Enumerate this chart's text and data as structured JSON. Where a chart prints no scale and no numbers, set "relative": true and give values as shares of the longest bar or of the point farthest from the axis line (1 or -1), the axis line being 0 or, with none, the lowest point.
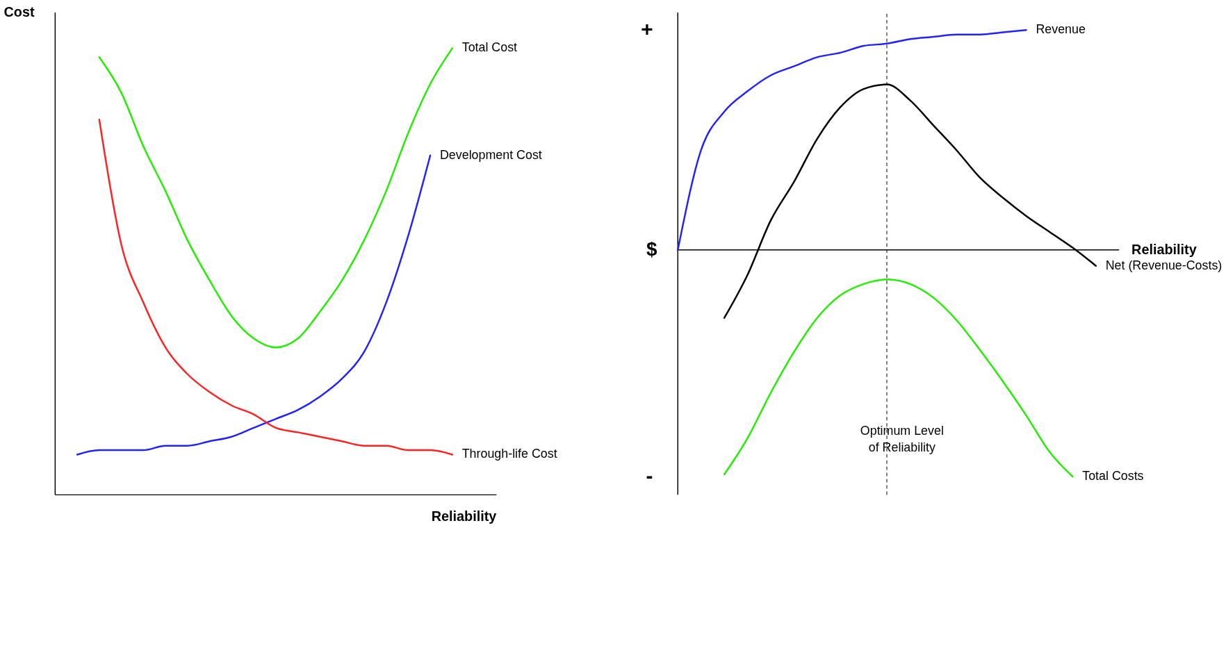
{
  "chart_data": [
    {
      "type": "line",
      "relative": true,
      "xlabel": "Reliability",
      "ylabel": "Cost",
      "marker": "none",
      "line_style": "solid",
      "categories": [
        null,
        null,
        null,
        null,
        null,
        null,
        null,
        null,
        null,
        null,
        null,
        null,
        null,
        null,
        null,
        null,
        null,
        null,
        null,
        null,
        null
      ],
      "series": [
        {
          "name": "Total Cost",
          "color": "#22ee00",
          "values": [
            null,
            null,
            0.98,
            0.9,
            0.78,
            0.68,
            0.57,
            0.48,
            0.4,
            0.35,
            0.33,
            0.35,
            0.41,
            0.48,
            0.57,
            0.68,
            0.81,
            0.92,
            1.0,
            null,
            null
          ]
        },
        {
          "name": "Development Cost",
          "color": "#2222ff",
          "values": [
            null,
            0.09,
            0.1,
            0.1,
            0.1,
            0.11,
            0.11,
            0.12,
            0.13,
            0.15,
            0.17,
            0.19,
            0.22,
            0.26,
            0.32,
            0.43,
            0.58,
            0.76,
            null,
            null,
            null
          ]
        },
        {
          "name": "Through-life Cost",
          "color": "#ff2222",
          "values": [
            null,
            null,
            0.84,
            0.56,
            0.43,
            0.33,
            0.27,
            0.23,
            0.2,
            0.18,
            0.15,
            0.14,
            0.13,
            0.12,
            0.11,
            0.11,
            0.1,
            0.1,
            0.09,
            null,
            null
          ]
        }
      ]
    },
    {
      "type": "line",
      "relative": true,
      "xlabel": "Reliability",
      "ylabel": "$",
      "marker": "none",
      "line_style": "solid",
      "annotations": [
        "+",
        "-",
        "Optimum Level\nof Reliability"
      ],
      "categories": [
        null,
        null,
        null,
        null,
        null,
        null,
        null,
        null,
        null,
        null,
        null,
        null,
        null,
        null,
        null,
        null,
        null,
        null,
        null,
        null
      ],
      "series": [
        {
          "name": "Revenue",
          "color": "#2222ff",
          "values": [
            0,
            0.44,
            0.61,
            0.7,
            0.77,
            0.81,
            0.85,
            0.87,
            0.9,
            0.91,
            0.93,
            0.94,
            0.95,
            0.95,
            0.96,
            0.97,
            null,
            null,
            null,
            null
          ]
        },
        {
          "name": "Net (Revenue-Costs)",
          "color": "#000000",
          "values": [
            null,
            null,
            -0.3,
            -0.11,
            0.13,
            0.3,
            0.49,
            0.63,
            0.71,
            0.73,
            0.66,
            0.55,
            0.44,
            0.32,
            0.23,
            0.15,
            0.08,
            0.01,
            -0.07,
            null
          ]
        },
        {
          "name": "Total Costs",
          "color": "#22ee00",
          "values": [
            null,
            null,
            -0.99,
            -0.83,
            -0.63,
            -0.45,
            -0.3,
            -0.2,
            -0.15,
            -0.13,
            -0.15,
            -0.21,
            -0.31,
            -0.44,
            -0.58,
            -0.73,
            -0.89,
            -1.0,
            null,
            null
          ]
        }
      ]
    }
  ]
}
